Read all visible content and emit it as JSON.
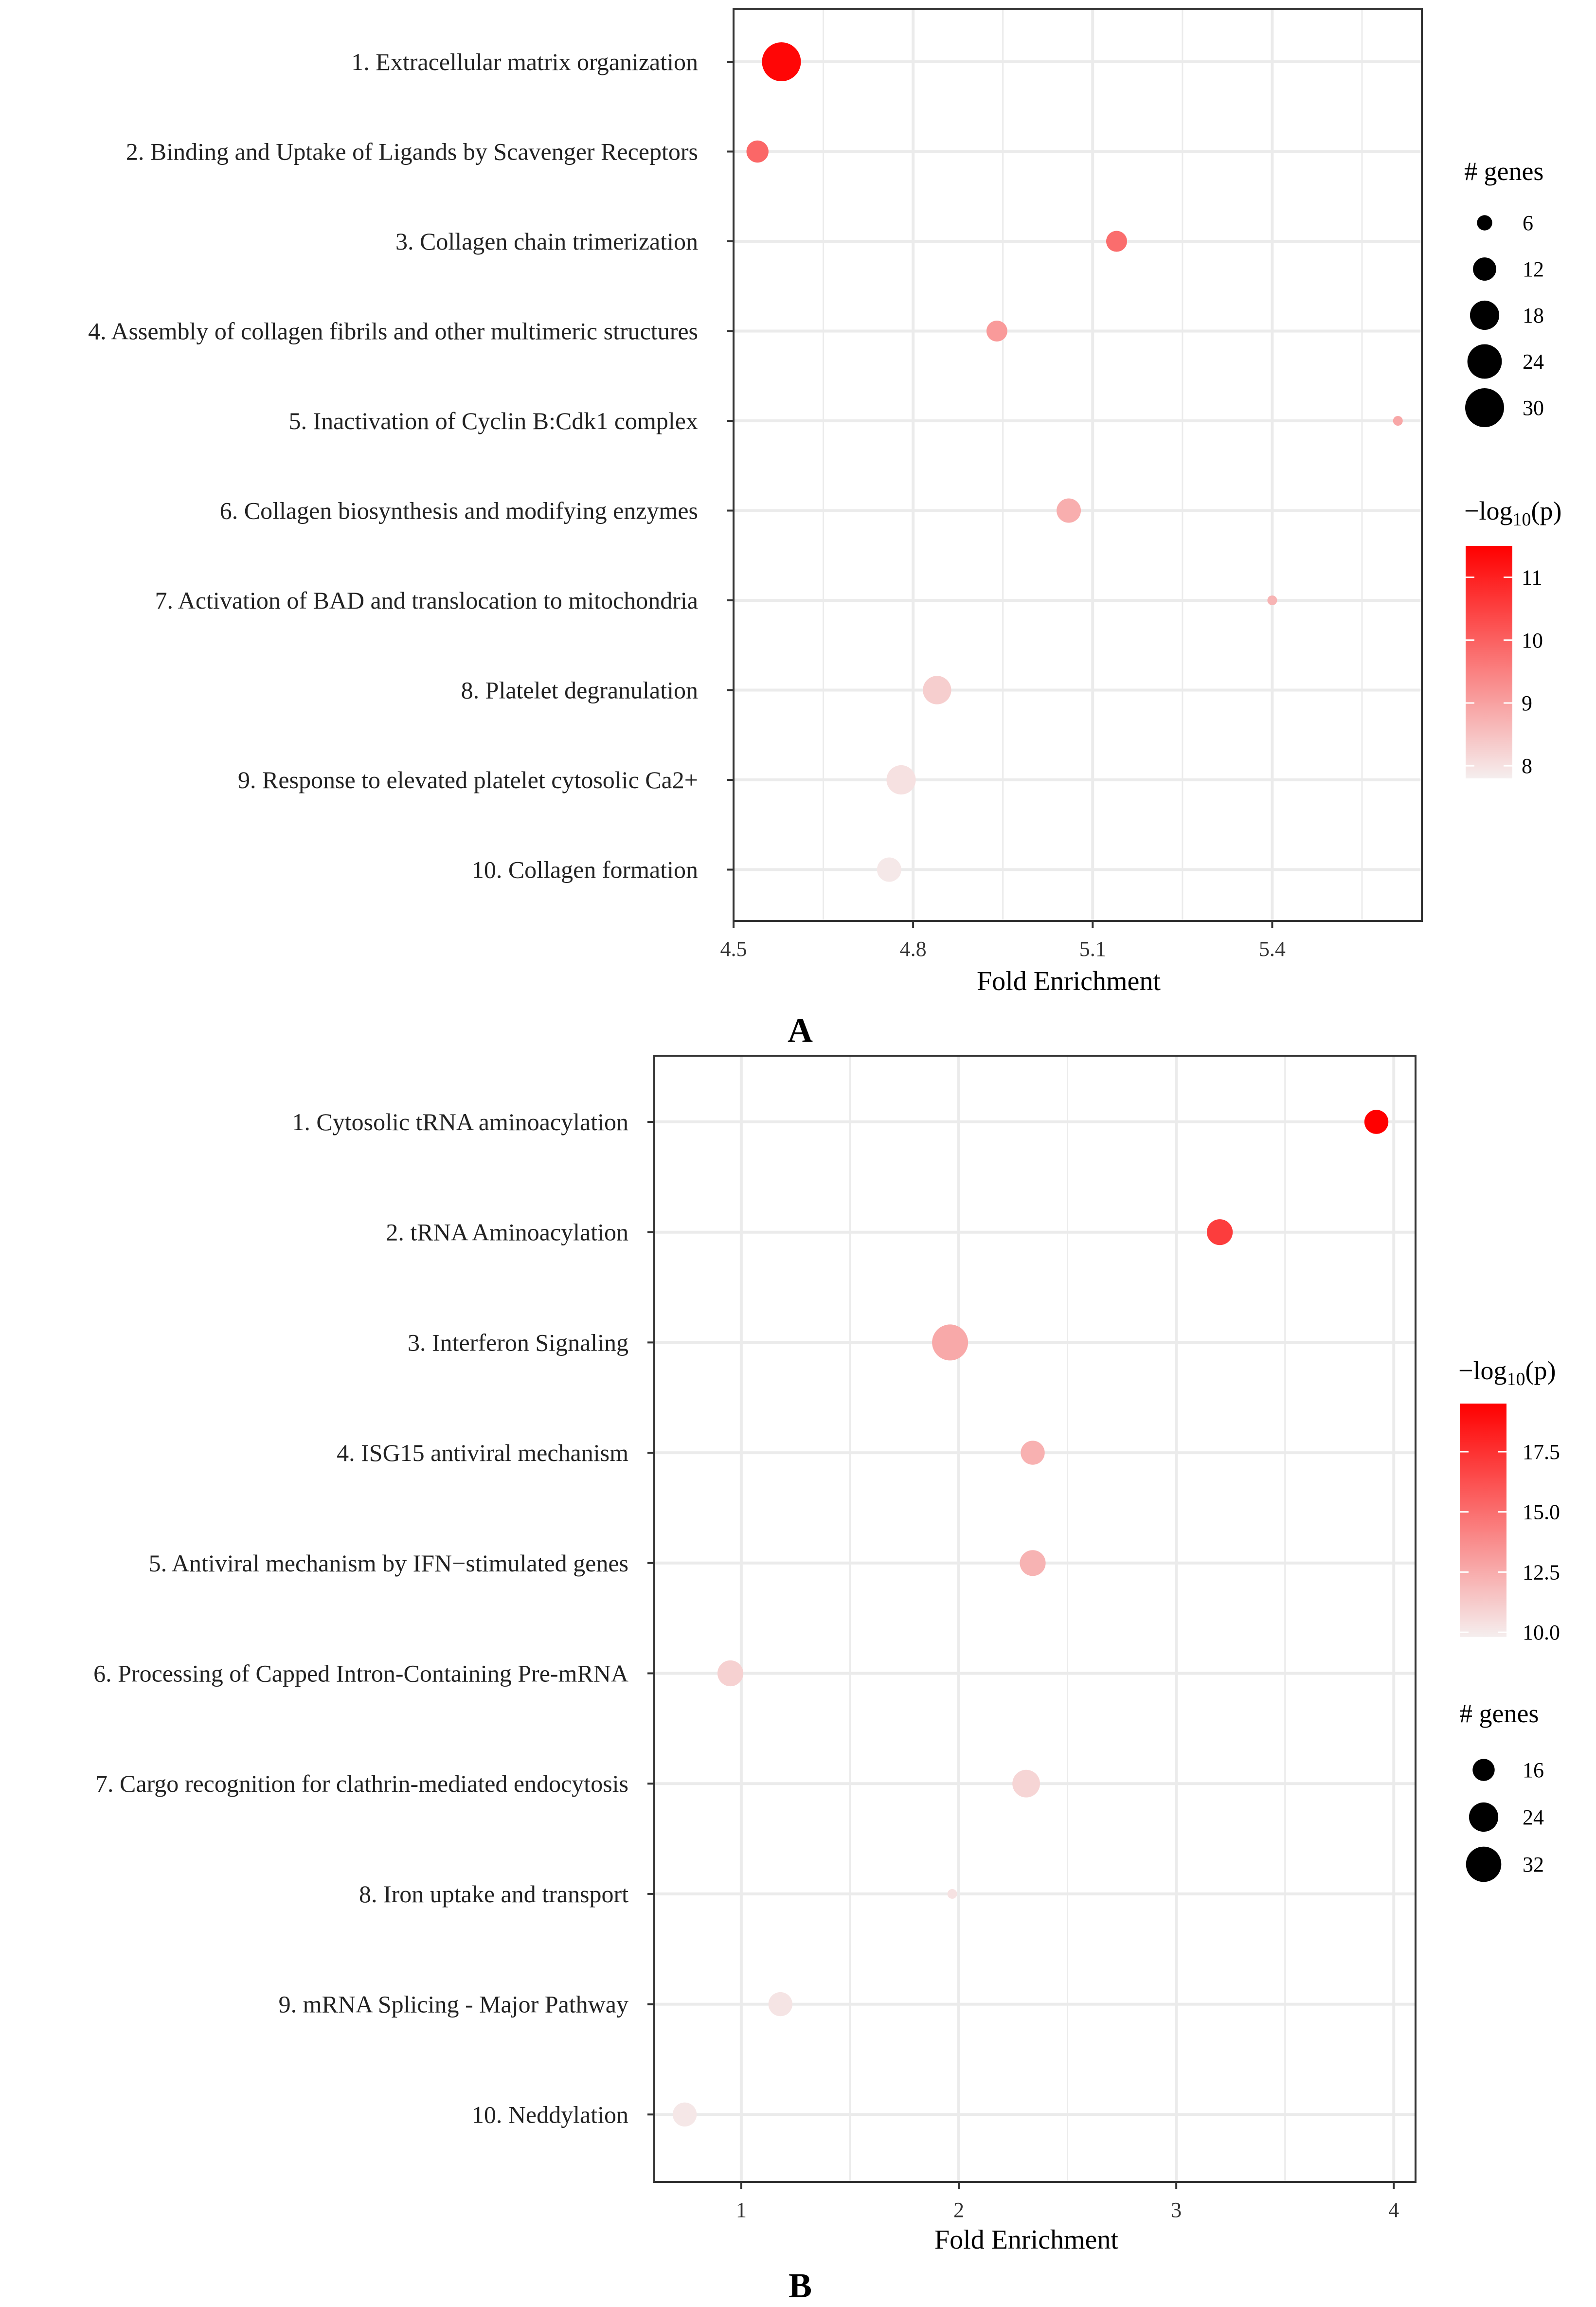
{
  "chart_data": [
    {
      "type": "scatter",
      "panel": "A",
      "xlabel": "Fold Enrichment",
      "ylabel": "",
      "xlim": [
        4.5,
        5.65
      ],
      "xticks": [
        4.5,
        4.8,
        5.1,
        5.4
      ],
      "xtick_labels": [
        "4.5",
        "4.8",
        "5.1",
        "5.4"
      ],
      "categories": [
        "1. Extracellular matrix organization",
        "2. Binding and Uptake of Ligands by Scavenger Receptors",
        "3. Collagen chain trimerization",
        "4. Assembly of collagen fibrils and other multimeric structures",
        "5. Inactivation of Cyclin B:Cdk1 complex",
        "6. Collagen biosynthesis and modifying enzymes",
        "7. Activation of BAD and translocation to mitochondria",
        "8. Platelet degranulation",
        "9. Response to elevated platelet cytosolic Ca2+",
        "10. Collagen formation"
      ],
      "fold_enrichment": [
        4.58,
        4.54,
        5.14,
        4.94,
        5.61,
        5.06,
        5.4,
        4.84,
        4.78,
        4.76
      ],
      "genes": [
        30,
        11,
        10,
        10,
        3,
        13,
        3,
        17,
        18,
        13
      ],
      "neg_log10_p": [
        11.4,
        9.9,
        9.8,
        9.1,
        8.9,
        8.8,
        8.7,
        8.3,
        8.0,
        7.9
      ],
      "size_legend": {
        "title": "# genes",
        "values": [
          6,
          12,
          18,
          24,
          30
        ],
        "labels": [
          "6",
          "12",
          "18",
          "24",
          "30"
        ]
      },
      "color_legend": {
        "title_prefix": "−log",
        "title_sub": "10",
        "title_suffix": "(p)",
        "range": [
          7.8,
          11.5
        ],
        "ticks": [
          8,
          9,
          10,
          11
        ],
        "tick_labels": [
          "8",
          "9",
          "10",
          "11"
        ],
        "low_color": "#f5eeee",
        "high_color": "#ff0000"
      }
    },
    {
      "type": "scatter",
      "panel": "B",
      "xlabel": "Fold Enrichment",
      "ylabel": "",
      "xlim": [
        0.6,
        4.1
      ],
      "xticks": [
        1,
        2,
        3,
        4
      ],
      "xtick_labels": [
        "1",
        "2",
        "3",
        "4"
      ],
      "categories": [
        "1. Cytosolic tRNA aminoacylation",
        "2. tRNA Aminoacylation",
        "3. Interferon Signaling",
        "4. ISG15 antiviral mechanism",
        "5. Antiviral mechanism by IFN−stimulated genes",
        "6. Processing of Capped Intron-Containing Pre-mRNA",
        "7. Cargo recognition for clathrin-mediated endocytosis",
        "8. Iron uptake and transport",
        "9. mRNA Splicing - Major Pathway",
        "10. Neddylation"
      ],
      "fold_enrichment": [
        3.92,
        3.2,
        1.96,
        2.34,
        2.34,
        0.95,
        2.31,
        1.97,
        1.18,
        0.74
      ],
      "genes": [
        18,
        20,
        33,
        18,
        20,
        20,
        22,
        6,
        18,
        18
      ],
      "neg_log10_p": [
        19.5,
        17.0,
        12.6,
        12.3,
        12.2,
        11.0,
        10.8,
        10.3,
        10.2,
        10.1
      ],
      "size_legend": {
        "title": "# genes",
        "values": [
          16,
          24,
          32
        ],
        "labels": [
          "16",
          "24",
          "32"
        ]
      },
      "color_legend": {
        "title_prefix": "−log",
        "title_sub": "10",
        "title_suffix": "(p)",
        "range": [
          9.8,
          19.5
        ],
        "ticks": [
          10,
          12.5,
          15,
          17.5
        ],
        "tick_labels": [
          "10.0",
          "12.5",
          "15.0",
          "17.5"
        ],
        "low_color": "#f5eeee",
        "high_color": "#ff0000"
      }
    }
  ]
}
